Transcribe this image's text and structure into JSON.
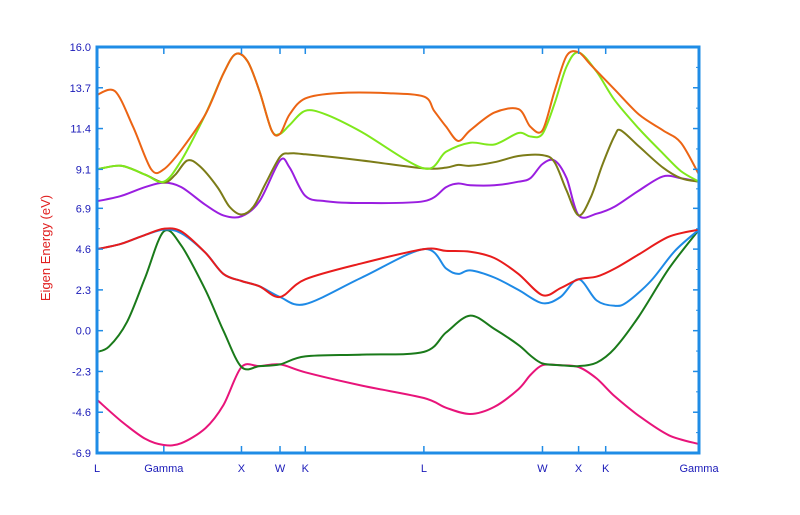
{
  "chart_data": {
    "type": "line",
    "title": "",
    "xlabel": "",
    "ylabel": "Eigen Energy (eV)",
    "ylim": [
      -6.9,
      16.0
    ],
    "yticks": [
      -6.9,
      -4.6,
      -2.3,
      0.0,
      2.3,
      4.6,
      6.9,
      9.1,
      11.4,
      13.7,
      16.0
    ],
    "ytick_labels": [
      "-6.9",
      "-4.6",
      "-2.3",
      "0.0",
      "2.3",
      "4.6",
      "6.9",
      "9.1",
      "11.4",
      "13.7",
      "16.0"
    ],
    "xlim": [
      0,
      100
    ],
    "kpoints": [
      {
        "label": "L",
        "x": 0
      },
      {
        "label": "Gamma",
        "x": 11.1
      },
      {
        "label": "X",
        "x": 24.0
      },
      {
        "label": "W",
        "x": 30.4
      },
      {
        "label": "K",
        "x": 34.6
      },
      {
        "label": "L",
        "x": 54.3
      },
      {
        "label": "W",
        "x": 74.0
      },
      {
        "label": "X",
        "x": 80.0
      },
      {
        "label": "K",
        "x": 84.5
      },
      {
        "label": "Gamma",
        "x": 100
      }
    ],
    "grid": false,
    "legend": "none",
    "colors": {
      "axis": "#1f8ce6",
      "tick_text": "#1a1ab8",
      "ylabel": "#e02020"
    },
    "series": [
      {
        "color": "#e8147a",
        "points": [
          [
            0,
            -3.9
          ],
          [
            4,
            -5.1
          ],
          [
            8,
            -6.1
          ],
          [
            11.1,
            -6.45
          ],
          [
            14,
            -6.35
          ],
          [
            18,
            -5.5
          ],
          [
            21,
            -4.2
          ],
          [
            24,
            -2.05
          ],
          [
            27,
            -2.0
          ],
          [
            30.4,
            -1.9
          ],
          [
            34.6,
            -2.35
          ],
          [
            44,
            -3.1
          ],
          [
            54.3,
            -3.8
          ],
          [
            58,
            -4.35
          ],
          [
            62,
            -4.7
          ],
          [
            66,
            -4.3
          ],
          [
            70,
            -3.3
          ],
          [
            72,
            -2.5
          ],
          [
            74,
            -1.95
          ],
          [
            77,
            -1.95
          ],
          [
            80,
            -2.05
          ],
          [
            83,
            -2.7
          ],
          [
            86,
            -3.7
          ],
          [
            90,
            -4.8
          ],
          [
            95,
            -5.9
          ],
          [
            100,
            -6.4
          ]
        ]
      },
      {
        "color": "#1a7a1a",
        "points": [
          [
            0,
            -1.2
          ],
          [
            2,
            -0.9
          ],
          [
            5,
            0.5
          ],
          [
            8,
            3.0
          ],
          [
            11.1,
            5.6
          ],
          [
            14,
            4.8
          ],
          [
            18,
            2.3
          ],
          [
            21,
            0.0
          ],
          [
            24,
            -2.05
          ],
          [
            27,
            -2.0
          ],
          [
            30.4,
            -1.9
          ],
          [
            34.6,
            -1.45
          ],
          [
            44,
            -1.35
          ],
          [
            54.3,
            -1.2
          ],
          [
            58,
            -0.1
          ],
          [
            62,
            0.85
          ],
          [
            66,
            0.1
          ],
          [
            70,
            -0.8
          ],
          [
            72,
            -1.4
          ],
          [
            74,
            -1.85
          ],
          [
            77,
            -1.95
          ],
          [
            80,
            -2.0
          ],
          [
            83,
            -1.8
          ],
          [
            86,
            -1.0
          ],
          [
            90,
            0.8
          ],
          [
            95,
            3.5
          ],
          [
            100,
            5.7
          ]
        ]
      },
      {
        "color": "#1e8ae6",
        "points": [
          [
            0,
            4.6
          ],
          [
            4,
            4.9
          ],
          [
            8,
            5.4
          ],
          [
            11.1,
            5.7
          ],
          [
            14,
            5.5
          ],
          [
            18,
            4.4
          ],
          [
            21,
            3.2
          ],
          [
            24,
            2.8
          ],
          [
            27,
            2.5
          ],
          [
            30.4,
            1.9
          ],
          [
            34.6,
            1.5
          ],
          [
            44,
            3.0
          ],
          [
            54.3,
            4.6
          ],
          [
            58,
            3.5
          ],
          [
            60,
            3.2
          ],
          [
            62,
            3.4
          ],
          [
            66,
            3.0
          ],
          [
            70,
            2.3
          ],
          [
            74,
            1.55
          ],
          [
            77,
            1.9
          ],
          [
            80,
            2.9
          ],
          [
            83,
            1.7
          ],
          [
            86,
            1.4
          ],
          [
            88,
            1.6
          ],
          [
            92,
            2.8
          ],
          [
            96,
            4.5
          ],
          [
            100,
            5.7
          ]
        ]
      },
      {
        "color": "#e81c1c",
        "points": [
          [
            0,
            4.6
          ],
          [
            4,
            4.9
          ],
          [
            8,
            5.4
          ],
          [
            11.1,
            5.75
          ],
          [
            14,
            5.6
          ],
          [
            18,
            4.4
          ],
          [
            21,
            3.2
          ],
          [
            24,
            2.8
          ],
          [
            27,
            2.5
          ],
          [
            30.4,
            1.9
          ],
          [
            34.6,
            2.9
          ],
          [
            44,
            3.8
          ],
          [
            54.3,
            4.6
          ],
          [
            58,
            4.5
          ],
          [
            62,
            4.45
          ],
          [
            66,
            4.1
          ],
          [
            70,
            3.2
          ],
          [
            74,
            2.0
          ],
          [
            77,
            2.4
          ],
          [
            80,
            2.9
          ],
          [
            83,
            3.05
          ],
          [
            86,
            3.5
          ],
          [
            90,
            4.3
          ],
          [
            95,
            5.3
          ],
          [
            100,
            5.7
          ]
        ]
      },
      {
        "color": "#9a1ee0",
        "points": [
          [
            0,
            7.3
          ],
          [
            4,
            7.6
          ],
          [
            8,
            8.1
          ],
          [
            11.1,
            8.35
          ],
          [
            14,
            8.1
          ],
          [
            18,
            7.1
          ],
          [
            21,
            6.5
          ],
          [
            24,
            6.45
          ],
          [
            27,
            7.3
          ],
          [
            30.4,
            9.6
          ],
          [
            32,
            9.2
          ],
          [
            34.6,
            7.6
          ],
          [
            38,
            7.3
          ],
          [
            44,
            7.2
          ],
          [
            54.3,
            7.3
          ],
          [
            58,
            8.1
          ],
          [
            60,
            8.3
          ],
          [
            62,
            8.2
          ],
          [
            66,
            8.2
          ],
          [
            70,
            8.4
          ],
          [
            72,
            8.6
          ],
          [
            74,
            9.4
          ],
          [
            76,
            9.6
          ],
          [
            78,
            8.6
          ],
          [
            80,
            6.5
          ],
          [
            83,
            6.6
          ],
          [
            86,
            7.0
          ],
          [
            90,
            7.9
          ],
          [
            94,
            8.7
          ],
          [
            97,
            8.6
          ],
          [
            100,
            8.4
          ]
        ]
      },
      {
        "color": "#7c7c18",
        "points": [
          [
            0,
            9.1
          ],
          [
            4,
            9.3
          ],
          [
            8,
            8.8
          ],
          [
            11.1,
            8.35
          ],
          [
            13,
            8.8
          ],
          [
            15,
            9.6
          ],
          [
            17,
            9.3
          ],
          [
            20,
            8.1
          ],
          [
            22,
            7.0
          ],
          [
            24,
            6.55
          ],
          [
            26,
            7.0
          ],
          [
            28,
            8.3
          ],
          [
            30.4,
            9.8
          ],
          [
            32,
            10.0
          ],
          [
            34.6,
            9.95
          ],
          [
            44,
            9.6
          ],
          [
            54.3,
            9.15
          ],
          [
            58,
            9.2
          ],
          [
            60,
            9.35
          ],
          [
            62,
            9.3
          ],
          [
            66,
            9.5
          ],
          [
            70,
            9.85
          ],
          [
            74,
            9.9
          ],
          [
            76,
            9.5
          ],
          [
            78,
            7.9
          ],
          [
            80,
            6.5
          ],
          [
            82,
            7.5
          ],
          [
            84,
            9.4
          ],
          [
            86,
            11.0
          ],
          [
            87,
            11.3
          ],
          [
            90,
            10.4
          ],
          [
            94,
            9.2
          ],
          [
            97,
            8.6
          ],
          [
            100,
            8.4
          ]
        ]
      },
      {
        "color": "#7fe81c",
        "points": [
          [
            0,
            9.1
          ],
          [
            4,
            9.3
          ],
          [
            8,
            8.8
          ],
          [
            11.1,
            8.4
          ],
          [
            14,
            9.6
          ],
          [
            18,
            12.2
          ],
          [
            21,
            14.5
          ],
          [
            23,
            15.6
          ],
          [
            25,
            15.2
          ],
          [
            27,
            13.5
          ],
          [
            29,
            11.3
          ],
          [
            30.4,
            11.1
          ],
          [
            32,
            11.6
          ],
          [
            34.6,
            12.4
          ],
          [
            38,
            12.2
          ],
          [
            44,
            11.2
          ],
          [
            54.3,
            9.15
          ],
          [
            58,
            10.1
          ],
          [
            62,
            10.6
          ],
          [
            66,
            10.5
          ],
          [
            70,
            11.15
          ],
          [
            72,
            10.95
          ],
          [
            74,
            11.1
          ],
          [
            76,
            12.8
          ],
          [
            78,
            14.9
          ],
          [
            80,
            15.7
          ],
          [
            83,
            14.6
          ],
          [
            86,
            13.0
          ],
          [
            90,
            11.4
          ],
          [
            94,
            10.0
          ],
          [
            97,
            9.0
          ],
          [
            100,
            8.4
          ]
        ]
      },
      {
        "color": "#ec6414",
        "points": [
          [
            0,
            13.3
          ],
          [
            3,
            13.5
          ],
          [
            6,
            11.5
          ],
          [
            9,
            9.1
          ],
          [
            11.1,
            9.1
          ],
          [
            14,
            10.2
          ],
          [
            18,
            12.2
          ],
          [
            21,
            14.5
          ],
          [
            23,
            15.6
          ],
          [
            25,
            15.2
          ],
          [
            27,
            13.5
          ],
          [
            29,
            11.3
          ],
          [
            30.4,
            11.1
          ],
          [
            32,
            12.2
          ],
          [
            34.6,
            13.1
          ],
          [
            40,
            13.4
          ],
          [
            48,
            13.4
          ],
          [
            54.3,
            13.2
          ],
          [
            56,
            12.4
          ],
          [
            58,
            11.5
          ],
          [
            60,
            10.7
          ],
          [
            62,
            11.3
          ],
          [
            66,
            12.3
          ],
          [
            70,
            12.5
          ],
          [
            72,
            11.5
          ],
          [
            74,
            11.3
          ],
          [
            76,
            13.5
          ],
          [
            78,
            15.5
          ],
          [
            80,
            15.7
          ],
          [
            82,
            15.0
          ],
          [
            86,
            13.6
          ],
          [
            90,
            12.2
          ],
          [
            94,
            11.3
          ],
          [
            97,
            10.6
          ],
          [
            100,
            8.8
          ]
        ]
      }
    ]
  }
}
